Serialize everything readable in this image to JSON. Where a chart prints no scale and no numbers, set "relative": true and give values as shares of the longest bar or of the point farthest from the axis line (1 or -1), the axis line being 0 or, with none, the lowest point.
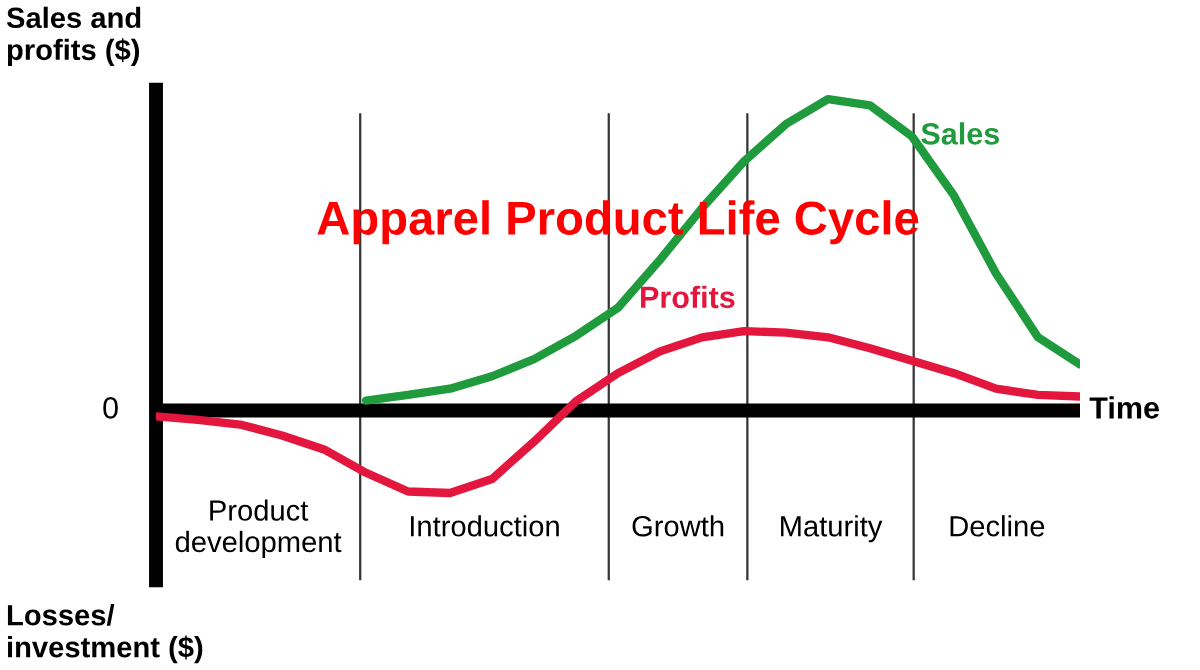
{
  "chart_data": {
    "type": "line",
    "relative": true,
    "title": "Apparel Product Life Cycle",
    "ylabel": "Sales and\nprofits ($)",
    "xlabel": "Time",
    "categories": [
      null,
      null,
      null,
      null,
      null,
      null,
      null,
      null,
      null,
      null,
      null,
      null,
      null,
      null,
      null,
      null,
      null,
      null,
      null,
      null,
      null,
      null,
      null
    ],
    "annotations": [
      "0",
      "Losses/\ninvestment ($)",
      "Product\ndevelopment",
      "Introduction",
      "Growth",
      "Maturity",
      "Decline"
    ],
    "series": [
      {
        "name": "Sales",
        "color": "#1f9a3c",
        "values": [
          null,
          null,
          null,
          null,
          null,
          0.032,
          0.05,
          0.07,
          0.11,
          0.165,
          0.24,
          0.33,
          0.484,
          0.65,
          0.8,
          0.92,
          1.0,
          0.98,
          0.88,
          0.69,
          0.44,
          0.235,
          0.148
        ]
      },
      {
        "name": "Profits",
        "color": "#e3173e",
        "values": [
          -0.019,
          -0.03,
          -0.045,
          -0.08,
          -0.125,
          -0.2,
          -0.26,
          -0.265,
          -0.22,
          -0.1,
          0.03,
          0.12,
          0.19,
          0.235,
          0.255,
          0.25,
          0.235,
          0.2,
          0.16,
          0.12,
          0.07,
          0.05,
          0.045
        ]
      }
    ]
  }
}
